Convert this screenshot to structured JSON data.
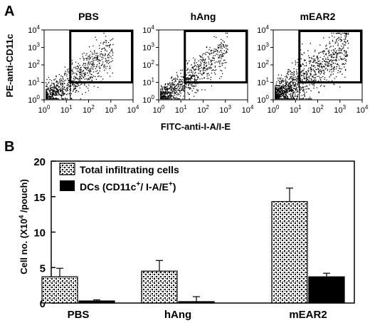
{
  "panel_a": {
    "letter": "A",
    "ylabel": "PE-anti-CD11c",
    "xlabel": "FITC-anti-I-A/I-E",
    "tick_base": "10",
    "tick_exponents": [
      "0",
      "1",
      "2",
      "3",
      "4"
    ]
  },
  "panel_b": {
    "letter": "B"
  },
  "chart_data": [
    {
      "type": "scatter",
      "panels": [
        {
          "title": "PBS",
          "density": 1.0,
          "spread": 0.16
        },
        {
          "title": "hAng",
          "density": 1.0,
          "spread": 0.15
        },
        {
          "title": "mEAR2",
          "density": 1.6,
          "spread": 0.2
        }
      ],
      "x_scale": "log",
      "y_scale": "log",
      "xlim": [
        1,
        10000
      ],
      "ylim": [
        1,
        10000
      ],
      "xlabel": "FITC-anti-I-A/I-E",
      "ylabel": "PE-anti-CD11c",
      "gate": {
        "x": [
          15,
          10000
        ],
        "y": [
          10,
          10000
        ]
      }
    },
    {
      "type": "bar",
      "categories": [
        "PBS",
        "hAng",
        "mEAR2"
      ],
      "series": [
        {
          "name": "Total infiltrating cells",
          "values": [
            3.7,
            4.5,
            14.3
          ],
          "errors": [
            1.2,
            1.5,
            1.9
          ],
          "color": "#ffffff",
          "pattern": "speckle"
        },
        {
          "name_main": "DCs (CD11c",
          "name_sup1": "+",
          "name_mid": "/ I-A/E",
          "name_sup2": "+",
          "name_end": ")",
          "values": [
            0.3,
            0.2,
            3.7
          ],
          "errors": [
            0.15,
            0.7,
            0.5
          ],
          "color": "#000000"
        }
      ],
      "ylim": [
        0,
        20
      ],
      "yticks": [
        "0",
        "5",
        "10",
        "15",
        "20"
      ],
      "ylabel_main": "Cell no. (X10",
      "ylabel_sup": "4",
      "ylabel_end": " /pouch)",
      "legend": "top-left"
    }
  ]
}
